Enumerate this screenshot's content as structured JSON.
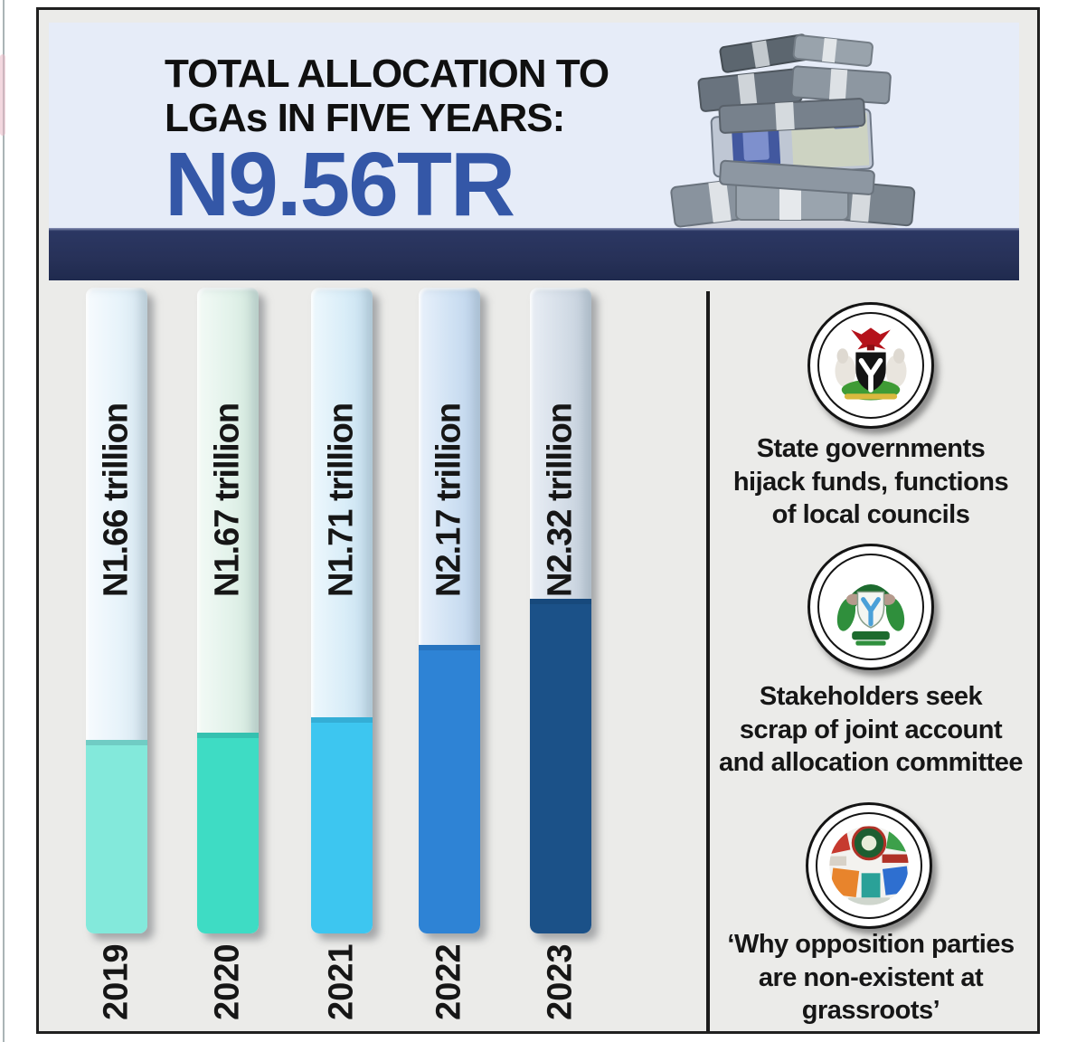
{
  "header": {
    "title_line1": "TOTAL ALLOCATION TO",
    "title_line2": "LGAs IN FIVE YEARS:",
    "amount": "N9.56TR"
  },
  "illustration": {
    "name": "naira-cash-bundles"
  },
  "chart_data": {
    "type": "bar",
    "title": "TOTAL ALLOCATION TO LGAs IN FIVE YEARS: N9.56TR",
    "unit": "trillion naira",
    "categories": [
      "2019",
      "2020",
      "2021",
      "2022",
      "2023"
    ],
    "values": [
      1.66,
      1.67,
      1.71,
      2.17,
      2.32
    ],
    "bar_labels": [
      "N1.66 trillion",
      "N1.67 trillion",
      "N1.71 trillion",
      "N2.17 trillion",
      "N2.32 trillion"
    ],
    "fill_colors": [
      "#83e9db",
      "#3edcc4",
      "#3dc6f0",
      "#2e83d5",
      "#1b5188"
    ],
    "fill_percent": [
      30,
      31.1,
      33.5,
      44.7,
      51.8
    ],
    "orientation": "vertical-tubes",
    "legend": "none",
    "grid": false
  },
  "sidebar": {
    "items": [
      {
        "icon": "nigeria-coat-of-arms",
        "lines": [
          "State governments",
          "hijack funds, functions",
          "of local councils"
        ]
      },
      {
        "icon": "joint-account-emblem",
        "lines": [
          "Stakeholders seek",
          "scrap of joint account",
          "and allocation committee"
        ]
      },
      {
        "icon": "party-logos-collage",
        "lines": [
          "‘Why opposition parties",
          "are non-existent at",
          "grassroots’"
        ]
      }
    ]
  }
}
